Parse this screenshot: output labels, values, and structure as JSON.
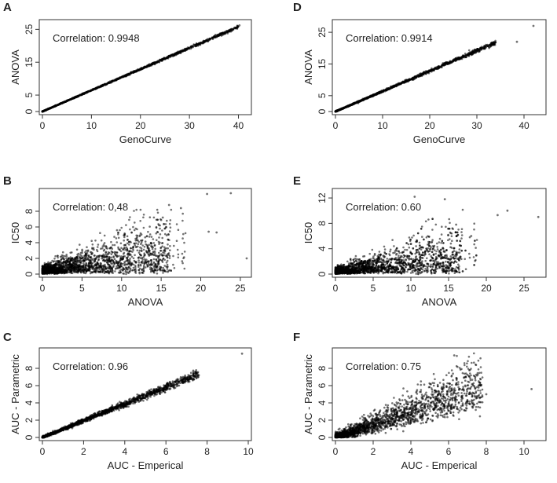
{
  "figure": {
    "panels": [
      "A",
      "B",
      "C",
      "D",
      "E",
      "F"
    ]
  },
  "chart_data": [
    {
      "panel": "A",
      "type": "scatter",
      "xlabel": "GenoCurve",
      "ylabel": "ANOVA",
      "annotation": "Correlation: 0.9948",
      "xlim": [
        0,
        42
      ],
      "ylim": [
        0,
        27
      ],
      "xticks": [
        0,
        10,
        20,
        30,
        40
      ],
      "yticks": [
        0,
        5,
        15,
        25
      ],
      "ytick_labels": [
        "0",
        "5",
        "15",
        "25"
      ],
      "trend": {
        "slope": 0.645,
        "noise": 0.35,
        "max_x": 40
      },
      "n_points": 1400,
      "outliers": [
        [
          37.8,
          23.8
        ],
        [
          40.2,
          26.2
        ],
        [
          33.0,
          21.0
        ]
      ]
    },
    {
      "panel": "B",
      "type": "scatter",
      "xlabel": "ANOVA",
      "ylabel": "IC50",
      "annotation": "Correlation: 0,48",
      "xlim": [
        0,
        26
      ],
      "ylim": [
        0,
        10.5
      ],
      "xticks": [
        0,
        5,
        10,
        15,
        20,
        25
      ],
      "yticks": [
        0,
        2,
        4,
        6,
        8
      ],
      "ytick_labels": [
        "0",
        "2",
        "4",
        "6",
        "8"
      ],
      "trend": {
        "cloud": true,
        "max_x": 26
      },
      "n_points": 2200,
      "outliers": [
        [
          20.8,
          10.2
        ],
        [
          23.8,
          10.3
        ],
        [
          21.0,
          5.4
        ],
        [
          22.0,
          5.3
        ],
        [
          25.8,
          2.0
        ],
        [
          16.0,
          8.8
        ],
        [
          17.5,
          8.4
        ],
        [
          15.2,
          7.2
        ]
      ]
    },
    {
      "panel": "C",
      "type": "scatter",
      "xlabel": "AUC - Emperical",
      "ylabel": "AUC - Parametric",
      "annotation": "Correlation: 0.96",
      "xlim": [
        0,
        10
      ],
      "ylim": [
        0,
        10
      ],
      "xticks": [
        0,
        2,
        4,
        6,
        8,
        10
      ],
      "yticks": [
        0,
        2,
        4,
        6,
        8
      ],
      "ytick_labels": [
        "0",
        "2",
        "4",
        "6",
        "8"
      ],
      "trend": {
        "slope": 0.97,
        "noise": 0.45,
        "max_x": 7.6
      },
      "n_points": 1600,
      "outliers": [
        [
          9.7,
          9.7
        ],
        [
          7.6,
          7.2
        ],
        [
          7.2,
          6.9
        ]
      ]
    },
    {
      "panel": "D",
      "type": "scatter",
      "xlabel": "GenoCurve",
      "ylabel": "ANOVA",
      "annotation": "Correlation: 0.9914",
      "xlim": [
        0,
        44
      ],
      "ylim": [
        0,
        28
      ],
      "xticks": [
        0,
        10,
        20,
        30,
        40
      ],
      "yticks": [
        0,
        5,
        15,
        25
      ],
      "ytick_labels": [
        "0",
        "5",
        "15",
        "25"
      ],
      "trend": {
        "slope": 0.64,
        "noise": 0.5,
        "max_x": 34
      },
      "n_points": 1400,
      "outliers": [
        [
          38.5,
          22.0
        ],
        [
          42.0,
          27.0
        ],
        [
          33.0,
          21.5
        ]
      ]
    },
    {
      "panel": "E",
      "type": "scatter",
      "xlabel": "ANOVA",
      "ylabel": "IC50",
      "annotation": "Correlation: 0.60",
      "xlim": [
        0,
        27.5
      ],
      "ylim": [
        0,
        13
      ],
      "xticks": [
        0,
        5,
        10,
        15,
        20,
        25
      ],
      "yticks": [
        0,
        4,
        8,
        12
      ],
      "ytick_labels": [
        "0",
        "4",
        "8",
        "12"
      ],
      "trend": {
        "cloud": true,
        "max_x": 27
      },
      "n_points": 2200,
      "outliers": [
        [
          10.5,
          12.2
        ],
        [
          14.5,
          11.8
        ],
        [
          22.8,
          10.0
        ],
        [
          26.9,
          9.0
        ],
        [
          21.5,
          9.3
        ],
        [
          18.0,
          6.0
        ],
        [
          16.0,
          7.8
        ]
      ]
    },
    {
      "panel": "F",
      "type": "scatter",
      "xlabel": "AUC - Emperical",
      "ylabel": "AUC - Parametric",
      "annotation": "Correlation: 0.75",
      "xlim": [
        0,
        11
      ],
      "ylim": [
        0,
        10
      ],
      "xticks": [
        0,
        2,
        4,
        6,
        8,
        10
      ],
      "yticks": [
        0,
        2,
        4,
        6,
        8
      ],
      "ytick_labels": [
        "0",
        "2",
        "4",
        "6",
        "8"
      ],
      "trend": {
        "loose": true,
        "slope": 0.85,
        "noise": 1.1,
        "max_x": 7.8
      },
      "n_points": 2000,
      "outliers": [
        [
          10.4,
          5.6
        ],
        [
          6.3,
          9.5
        ],
        [
          7.6,
          6.5
        ],
        [
          8.0,
          5.0
        ]
      ]
    }
  ]
}
